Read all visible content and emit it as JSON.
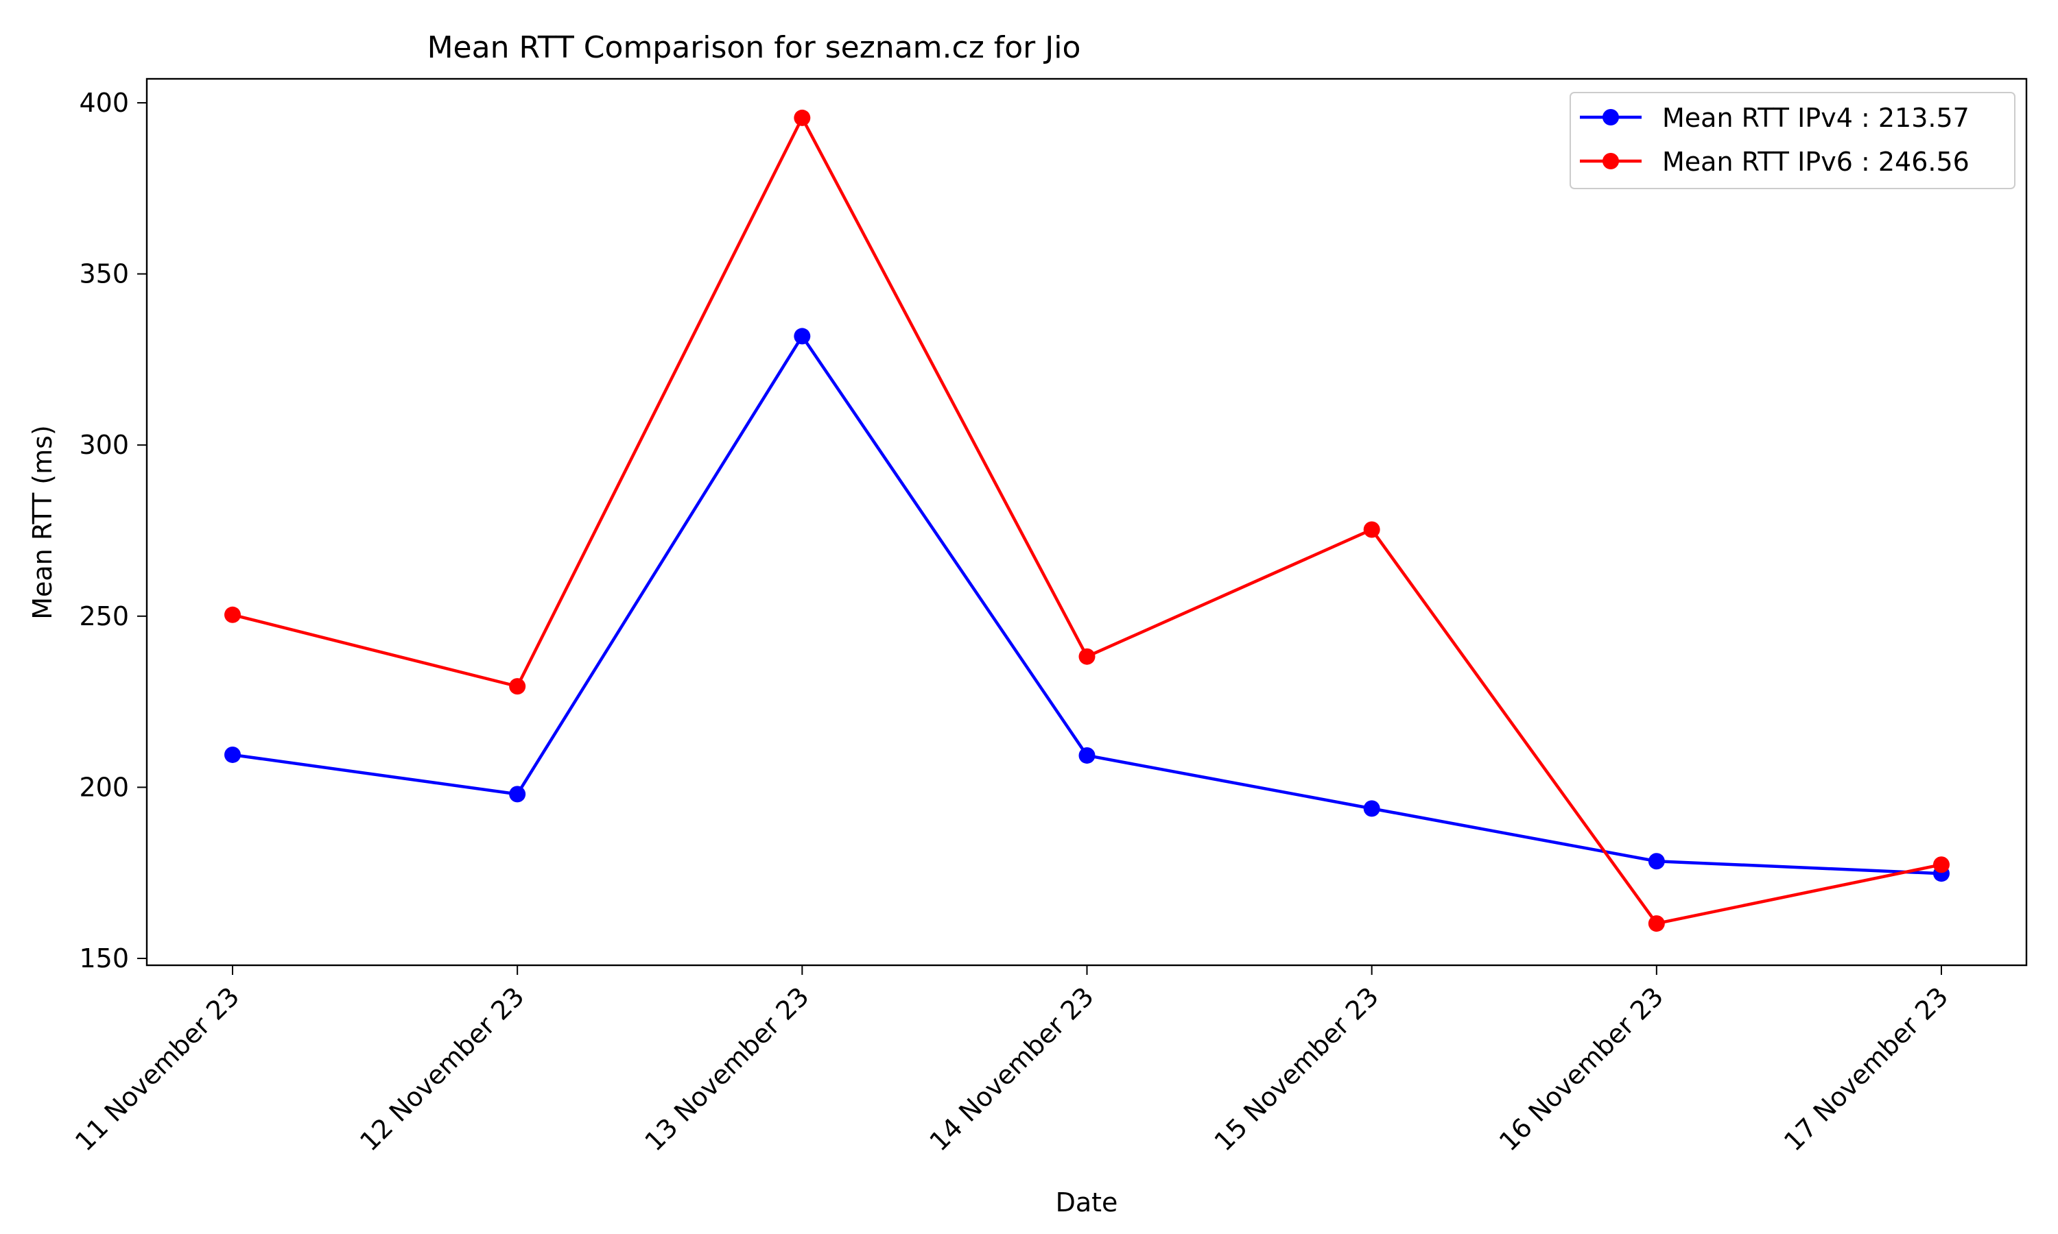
{
  "chart_data": {
    "type": "line",
    "title": "Mean RTT Comparison for seznam.cz for Jio",
    "xlabel": "Date",
    "ylabel": "Mean RTT (ms)",
    "categories": [
      "11 November 23",
      "12 November 23",
      "13 November 23",
      "14 November 23",
      "15 November 23",
      "16 November 23",
      "17 November 23"
    ],
    "ylim": [
      148,
      407
    ],
    "yticks": [
      150,
      200,
      250,
      300,
      350,
      400
    ],
    "grid": false,
    "legend_position": "top-right",
    "series": [
      {
        "name": "Mean RTT IPv4 : 213.57",
        "color": "#0000ff",
        "values": [
          209.5,
          198.0,
          331.8,
          209.3,
          193.8,
          178.4,
          174.8
        ]
      },
      {
        "name": "Mean RTT IPv6 : 246.56",
        "color": "#ff0000",
        "values": [
          250.4,
          229.5,
          395.6,
          238.2,
          275.3,
          160.2,
          177.4
        ]
      }
    ]
  }
}
